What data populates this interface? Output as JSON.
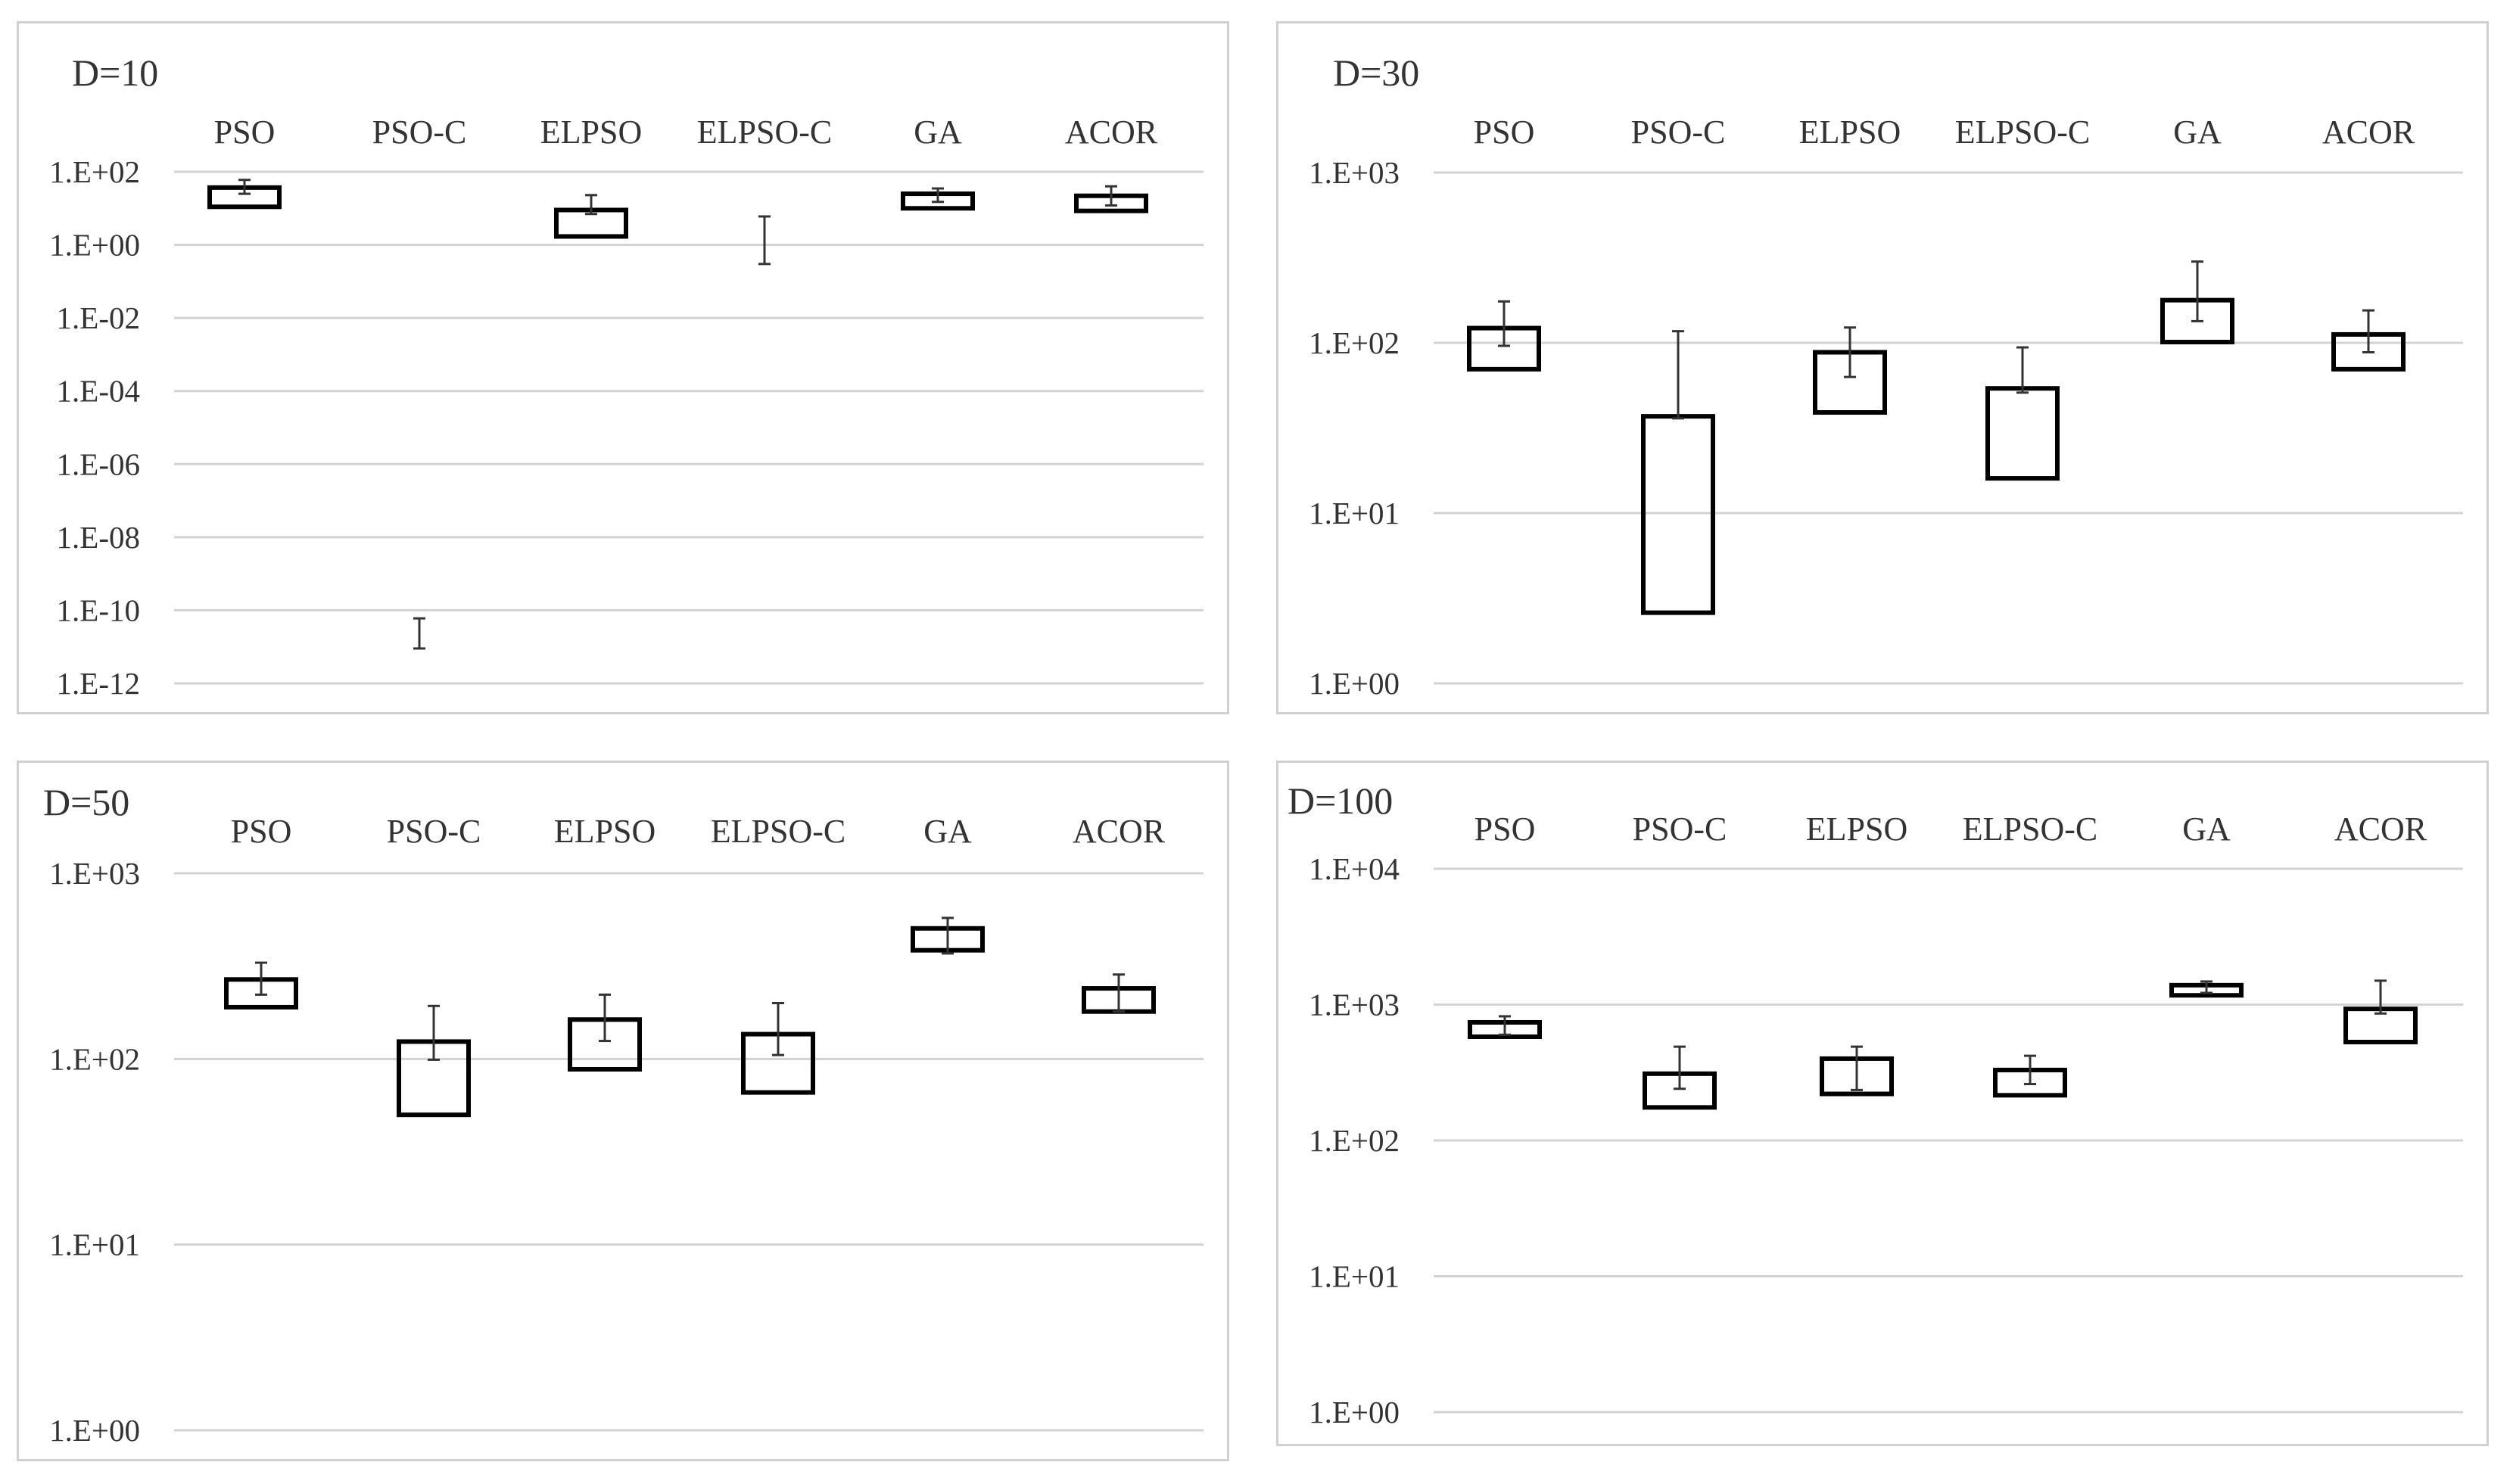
{
  "style": {
    "grid_color": "#d3d3d3",
    "box_stroke": "#000000",
    "whisker_color": "#333333",
    "text_color": "#333333"
  },
  "chart_data": [
    {
      "type": "box",
      "title": "D=10",
      "scale": "log",
      "ylim": [
        1e-12,
        100
      ],
      "yticks": [
        "1.E+02",
        "1.E+00",
        "1.E-02",
        "1.E-04",
        "1.E-06",
        "1.E-08",
        "1.E-10",
        "1.E-12"
      ],
      "categories": [
        "PSO",
        "PSO-C",
        "ELPSO",
        "ELPSO-C",
        "GA",
        "ACOR"
      ],
      "series": [
        {
          "values": [
            {
              "q1": 11,
              "q3": 37,
              "wlow": 25,
              "whigh": 60
            },
            {
              "q1": null,
              "q3": null,
              "wlow": 9e-12,
              "whigh": 6e-11
            },
            {
              "q1": 1.7,
              "q3": 9,
              "wlow": 7,
              "whigh": 23
            },
            {
              "q1": null,
              "q3": null,
              "wlow": 0.3,
              "whigh": 6
            },
            {
              "q1": 10,
              "q3": 25,
              "wlow": 15,
              "whigh": 35
            },
            {
              "q1": 8.5,
              "q3": 22,
              "wlow": 12,
              "whigh": 40
            }
          ]
        }
      ]
    },
    {
      "type": "box",
      "title": "D=30",
      "scale": "log",
      "ylim": [
        1,
        1000
      ],
      "yticks": [
        "1.E+03",
        "1.E+02",
        "1.E+01",
        "1.E+00"
      ],
      "categories": [
        "PSO",
        "PSO-C",
        "ELPSO",
        "ELPSO-C",
        "GA",
        "ACOR"
      ],
      "series": [
        {
          "values": [
            {
              "q1": 70,
              "q3": 122,
              "wlow": 96,
              "whigh": 175
            },
            {
              "q1": 2.6,
              "q3": 37,
              "wlow": 36,
              "whigh": 117
            },
            {
              "q1": 39,
              "q3": 88,
              "wlow": 63,
              "whigh": 123
            },
            {
              "q1": 16,
              "q3": 54,
              "wlow": 51,
              "whigh": 94
            },
            {
              "q1": 101,
              "q3": 178,
              "wlow": 134,
              "whigh": 300
            },
            {
              "q1": 70,
              "q3": 112,
              "wlow": 88,
              "whigh": 155
            }
          ]
        }
      ]
    },
    {
      "type": "box",
      "title": "D=50",
      "scale": "log",
      "ylim": [
        1,
        1000
      ],
      "yticks": [
        "1.E+03",
        "1.E+02",
        "1.E+01",
        "1.E+00"
      ],
      "categories": [
        "PSO",
        "PSO-C",
        "ELPSO",
        "ELPSO-C",
        "GA",
        "ACOR"
      ],
      "series": [
        {
          "values": [
            {
              "q1": 190,
              "q3": 268,
              "wlow": 222,
              "whigh": 330
            },
            {
              "q1": 50,
              "q3": 124,
              "wlow": 99,
              "whigh": 193
            },
            {
              "q1": 88,
              "q3": 163,
              "wlow": 125,
              "whigh": 222
            },
            {
              "q1": 66,
              "q3": 136,
              "wlow": 105,
              "whigh": 200
            },
            {
              "q1": 385,
              "q3": 505,
              "wlow": 370,
              "whigh": 575
            },
            {
              "q1": 180,
              "q3": 240,
              "wlow": 180,
              "whigh": 285
            }
          ]
        }
      ]
    },
    {
      "type": "box",
      "title": "D=100",
      "scale": "log",
      "ylim": [
        1,
        10000
      ],
      "yticks": [
        "1.E+04",
        "1.E+03",
        "1.E+02",
        "1.E+01",
        "1.E+00"
      ],
      "categories": [
        "PSO",
        "PSO-C",
        "ELPSO",
        "ELPSO-C",
        "GA",
        "ACOR"
      ],
      "series": [
        {
          "values": [
            {
              "q1": 580,
              "q3": 740,
              "wlow": 600,
              "whigh": 820
            },
            {
              "q1": 175,
              "q3": 310,
              "wlow": 240,
              "whigh": 490
            },
            {
              "q1": 220,
              "q3": 400,
              "wlow": 235,
              "whigh": 490
            },
            {
              "q1": 215,
              "q3": 330,
              "wlow": 260,
              "whigh": 420
            },
            {
              "q1": 1170,
              "q3": 1390,
              "wlow": 1220,
              "whigh": 1480
            },
            {
              "q1": 530,
              "q3": 930,
              "wlow": 860,
              "whigh": 1500
            }
          ]
        }
      ]
    }
  ]
}
